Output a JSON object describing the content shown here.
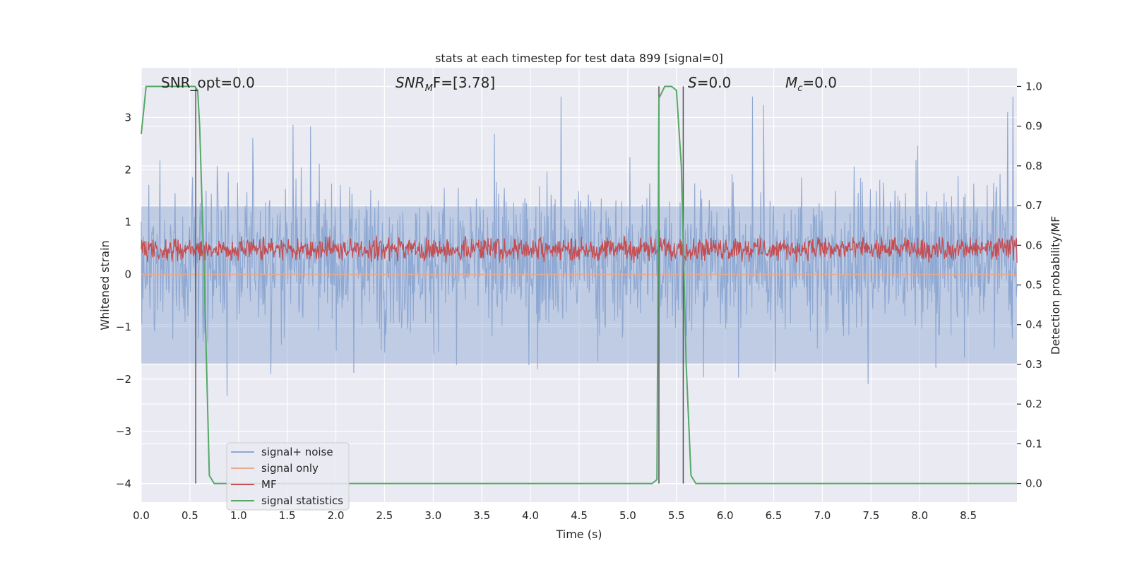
{
  "chart_data": {
    "type": "line",
    "title": "stats at each timestep for test data 899 [signal=0]",
    "xlabel": "Time (s)",
    "ylabel_left": "Whitened strain",
    "ylabel_right": "Detection probability/MF",
    "xlim": [
      0.0,
      9.0
    ],
    "ylim_left": [
      -4.35,
      3.95
    ],
    "ylim_right": [
      -0.047,
      1.047
    ],
    "x_ticks": [
      "0.0",
      "0.5",
      "1.0",
      "1.5",
      "2.0",
      "2.5",
      "3.0",
      "3.5",
      "4.0",
      "4.5",
      "5.0",
      "5.5",
      "6.0",
      "6.5",
      "7.0",
      "7.5",
      "8.0",
      "8.5"
    ],
    "y_ticks_left": [
      "3",
      "2",
      "1",
      "0",
      "−1",
      "−2",
      "−3",
      "−4"
    ],
    "y_ticks_right": [
      "1.0",
      "0.9",
      "0.8",
      "0.7",
      "0.6",
      "0.5",
      "0.4",
      "0.3",
      "0.2",
      "0.1",
      "0.0"
    ],
    "grid": true,
    "legend_position": "lower-left",
    "annotations": {
      "snr_opt": "SNR_opt=0.0",
      "snr_mf_main": "SNR",
      "snr_mf_sub": "M",
      "snr_mf_rest": "F=[3.78]",
      "s_main": "S",
      "s_rest": "=0.0",
      "mc_main": "M",
      "mc_sub": "c",
      "mc_rest": "=0.0"
    },
    "series": [
      {
        "name": "signal+ noise",
        "color": "#8fa8d2",
        "description_values": "white noise, roughly within -2.5..3.4 whitened strain"
      },
      {
        "name": "signal only",
        "color": "#e8a98c",
        "values_constant": 0.0
      },
      {
        "name": "MF",
        "color": "#c44e52",
        "range_right_axis": [
          0.52,
          0.62
        ]
      },
      {
        "name": "signal statistics",
        "color": "#55a868",
        "x": [
          0.0,
          0.05,
          0.1,
          0.5,
          0.55,
          0.58,
          0.6,
          0.65,
          0.7,
          0.75,
          5.25,
          5.3,
          5.32,
          5.38,
          5.45,
          5.5,
          5.55,
          5.6,
          5.65,
          5.7,
          5.75,
          9.0
        ],
        "y": [
          0.88,
          1.0,
          1.0,
          1.0,
          1.0,
          0.99,
          0.9,
          0.5,
          0.02,
          0.0,
          0.0,
          0.01,
          0.97,
          1.0,
          1.0,
          0.99,
          0.8,
          0.3,
          0.02,
          0.0,
          0.0,
          0.0
        ]
      }
    ],
    "vertical_lines_x": [
      0.56,
      5.32,
      5.57
    ],
    "colors": {
      "background": "#eaeaf2",
      "grid": "#ffffff",
      "vline": "#555555"
    }
  }
}
